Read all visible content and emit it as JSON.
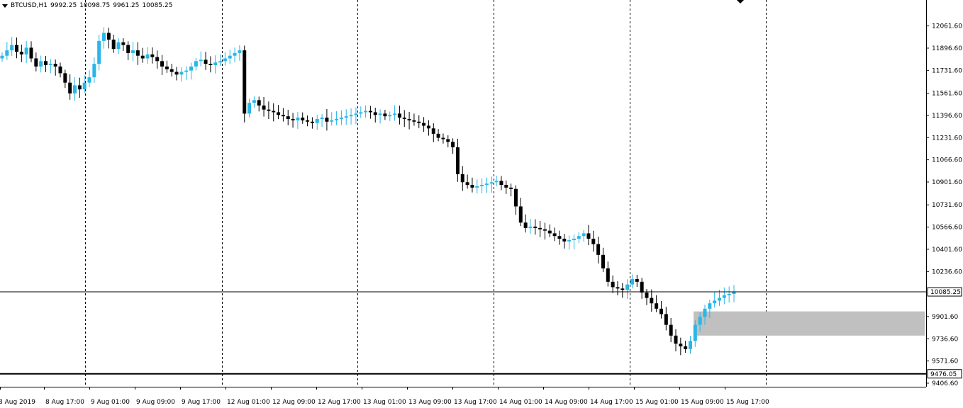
{
  "header": {
    "symbol": "BTCUSD,H1",
    "open": "9992.25",
    "high": "10098.75",
    "low": "9961.25",
    "close": "10085.25"
  },
  "colors": {
    "bull": "#29B6E8",
    "bear": "#000000",
    "zone": "#C0C0C0",
    "grid": "#000000",
    "price_label_bg": "#FFFFFF"
  },
  "chart_data": {
    "type": "candlestick",
    "symbol": "BTCUSD",
    "timeframe": "H1",
    "y_ticks": [
      "12061.60",
      "11896.60",
      "11731.60",
      "11561.60",
      "11396.60",
      "11231.60",
      "11066.60",
      "10901.60",
      "10731.60",
      "10566.60",
      "10401.60",
      "10236.60",
      "9901.60",
      "9736.60",
      "9571.60",
      "9406.60"
    ],
    "x_labels": [
      "8 Aug 2019",
      "8 Aug 17:00",
      "9 Aug 01:00",
      "9 Aug 09:00",
      "9 Aug 17:00",
      "12 Aug 01:00",
      "12 Aug 09:00",
      "12 Aug 17:00",
      "13 Aug 01:00",
      "13 Aug 09:00",
      "13 Aug 17:00",
      "14 Aug 01:00",
      "14 Aug 09:00",
      "14 Aug 17:00",
      "15 Aug 01:00",
      "15 Aug 09:00",
      "15 Aug 17:00"
    ],
    "ylim": [
      9380,
      12170
    ],
    "current_price": {
      "value": 10085.25,
      "label": "10085.25"
    },
    "support_line": {
      "value": 9476.05,
      "label": "9476.05"
    },
    "zone": {
      "from": 9760,
      "to": 9940
    },
    "close_series": [
      11840,
      11880,
      11920,
      11870,
      11850,
      11900,
      11820,
      11760,
      11800,
      11770,
      11780,
      11760,
      11710,
      11640,
      11560,
      11620,
      11590,
      11640,
      11680,
      11780,
      11950,
      12010,
      11960,
      11890,
      11940,
      11920,
      11860,
      11880,
      11840,
      11820,
      11850,
      11830,
      11800,
      11760,
      11740,
      11720,
      11700,
      11720,
      11730,
      11760,
      11800,
      11810,
      11780,
      11770,
      11790,
      11800,
      11820,
      11840,
      11860,
      11880,
      11410,
      11490,
      11510,
      11470,
      11440,
      11430,
      11420,
      11400,
      11390,
      11370,
      11360,
      11380,
      11360,
      11350,
      11340,
      11370,
      11380,
      11350,
      11360,
      11370,
      11380,
      11390,
      11400,
      11410,
      11420,
      11430,
      11420,
      11400,
      11410,
      11390,
      11400,
      11410,
      11380,
      11370,
      11360,
      11350,
      11340,
      11320,
      11300,
      11260,
      11230,
      11220,
      11200,
      11160,
      10960,
      10900,
      10880,
      10860,
      10870,
      10880,
      10890,
      10900,
      10910,
      10880,
      10860,
      10850,
      10720,
      10600,
      10560,
      10570,
      10560,
      10550,
      10540,
      10520,
      10500,
      10480,
      10460,
      10470,
      10480,
      10500,
      10520,
      10480,
      10440,
      10360,
      10260,
      10160,
      10120,
      10110,
      10100,
      10140,
      10180,
      10160,
      10080,
      10040,
      10000,
      9960,
      9920,
      9840,
      9760,
      9700,
      9680,
      9660,
      9720,
      9840,
      9900,
      9960,
      10000,
      10020,
      10040,
      10060,
      10070,
      10085
    ],
    "day_separators": [
      "9 Aug 2019",
      "12 Aug 2019",
      "13 Aug 2019",
      "14 Aug 2019",
      "15 Aug 2019",
      "16 Aug 2019"
    ]
  }
}
